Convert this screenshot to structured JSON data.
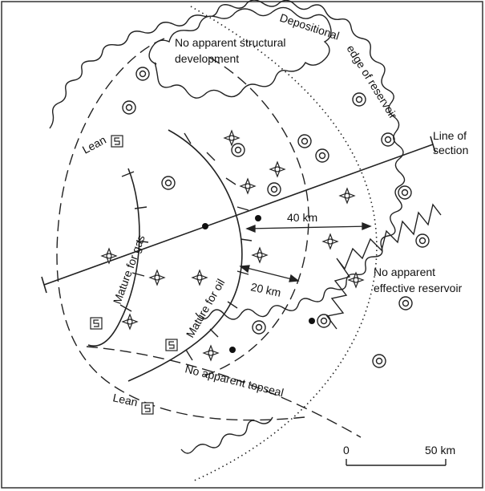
{
  "labels": {
    "depositional_edge_1": "Depositional",
    "depositional_edge_2": "edge of reservoir",
    "no_structural_1": "No apparent structural",
    "no_structural_2": "development",
    "line_of_section_1": "Line of",
    "line_of_section_2": "section",
    "lean_upper": "Lean",
    "lean_lower": "Lean",
    "mature_gas": "Mature for gas",
    "mature_oil": "Mature for oil",
    "dist_40": "40 km",
    "dist_20": "20 km",
    "no_reservoir_1": "No apparent",
    "no_reservoir_2": "effective reservoir",
    "no_topseal": "No apparent topseal"
  },
  "scale_bar": {
    "start_label": "0",
    "end_label": "50 km"
  },
  "symbols": {
    "oil_field": "double-circle-icon",
    "gas_show": "star-burst-icon",
    "dry_hole": "filled-dot-icon",
    "lean_source": "lean-box-icon"
  }
}
